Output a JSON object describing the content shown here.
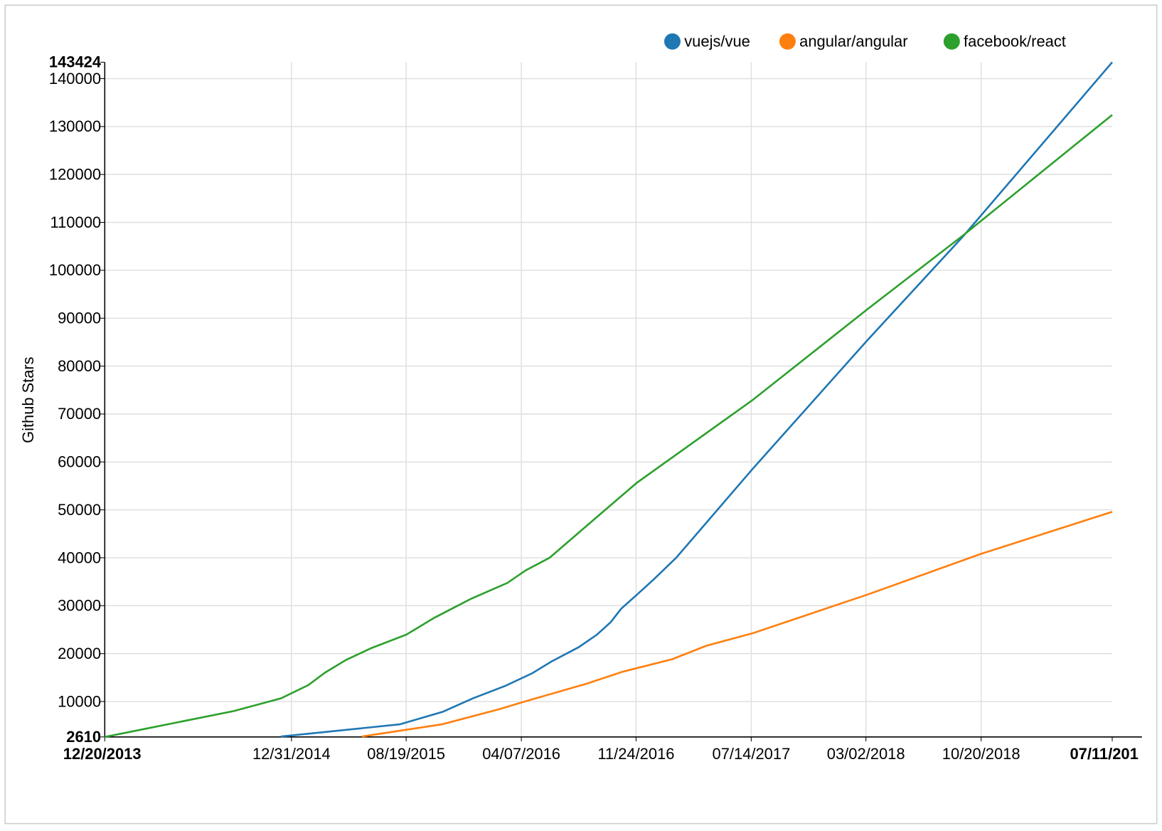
{
  "chart_data": {
    "type": "line",
    "y_label": "Github Stars",
    "xlim": [
      {
        "value": "2013-12-20",
        "label": "12/20/2013"
      },
      {
        "value": "2019-07-11",
        "label": "07/11/201"
      }
    ],
    "xticks": [
      {
        "value": "2014-12-31",
        "label": "12/31/2014"
      },
      {
        "value": "2015-08-19",
        "label": "08/19/2015"
      },
      {
        "value": "2016-04-07",
        "label": "04/07/2016"
      },
      {
        "value": "2016-11-24",
        "label": "11/24/2016"
      },
      {
        "value": "2017-07-14",
        "label": "07/14/2017"
      },
      {
        "value": "2018-03-02",
        "label": "03/02/2018"
      },
      {
        "value": "2018-10-20",
        "label": "10/20/2018"
      }
    ],
    "ylim": [
      2610,
      143424
    ],
    "yticks": [
      10000,
      20000,
      30000,
      40000,
      50000,
      60000,
      70000,
      80000,
      90000,
      100000,
      110000,
      120000,
      130000,
      140000
    ],
    "grid": true,
    "legend": "top-right",
    "series": [
      {
        "name": "vuejs/vue",
        "color": "#1f77b4",
        "x": [
          "2014-12-10",
          "2015-08-06",
          "2015-11-01",
          "2015-12-31",
          "2016-03-06",
          "2016-04-29",
          "2016-06-07",
          "2016-07-31",
          "2016-09-06",
          "2016-10-04",
          "2016-10-25",
          "2016-11-24",
          "2016-12-30",
          "2017-02-13",
          "2017-07-17",
          "2018-03-04",
          "2018-09-15",
          "2019-07-11"
        ],
        "values": [
          2700,
          5240,
          7870,
          10650,
          13280,
          15900,
          18380,
          21310,
          23940,
          26570,
          29350,
          32130,
          35530,
          40010,
          58560,
          85300,
          107240,
          143424
        ]
      },
      {
        "name": "angular/angular",
        "color": "#ff7f0e",
        "x": [
          "2015-05-22",
          "2015-10-30",
          "2016-02-20",
          "2016-04-20",
          "2016-08-17",
          "2016-10-28",
          "2017-02-05",
          "2017-04-14",
          "2017-07-17",
          "2017-09-30",
          "2018-03-04",
          "2018-10-19",
          "2019-07-11"
        ],
        "values": [
          2700,
          5240,
          8330,
          10180,
          13740,
          16210,
          18840,
          21620,
          24250,
          26880,
          32280,
          40790,
          49600
        ]
      },
      {
        "name": "facebook/react",
        "color": "#2ca02c",
        "x": [
          "2013-12-20",
          "2014-09-06",
          "2014-12-10",
          "2015-02-03",
          "2015-03-09",
          "2015-04-20",
          "2015-06-10",
          "2015-08-19",
          "2015-10-15",
          "2015-12-29",
          "2016-03-10",
          "2016-04-16",
          "2016-06-03",
          "2016-08-20",
          "2016-11-25",
          "2017-07-17",
          "2018-03-04",
          "2018-09-15",
          "2019-07-11"
        ],
        "values": [
          2610,
          8020,
          10660,
          13430,
          16060,
          18680,
          21160,
          23940,
          27500,
          31510,
          34760,
          37390,
          40010,
          46970,
          55620,
          72940,
          91790,
          107400,
          132440
        ]
      }
    ]
  }
}
